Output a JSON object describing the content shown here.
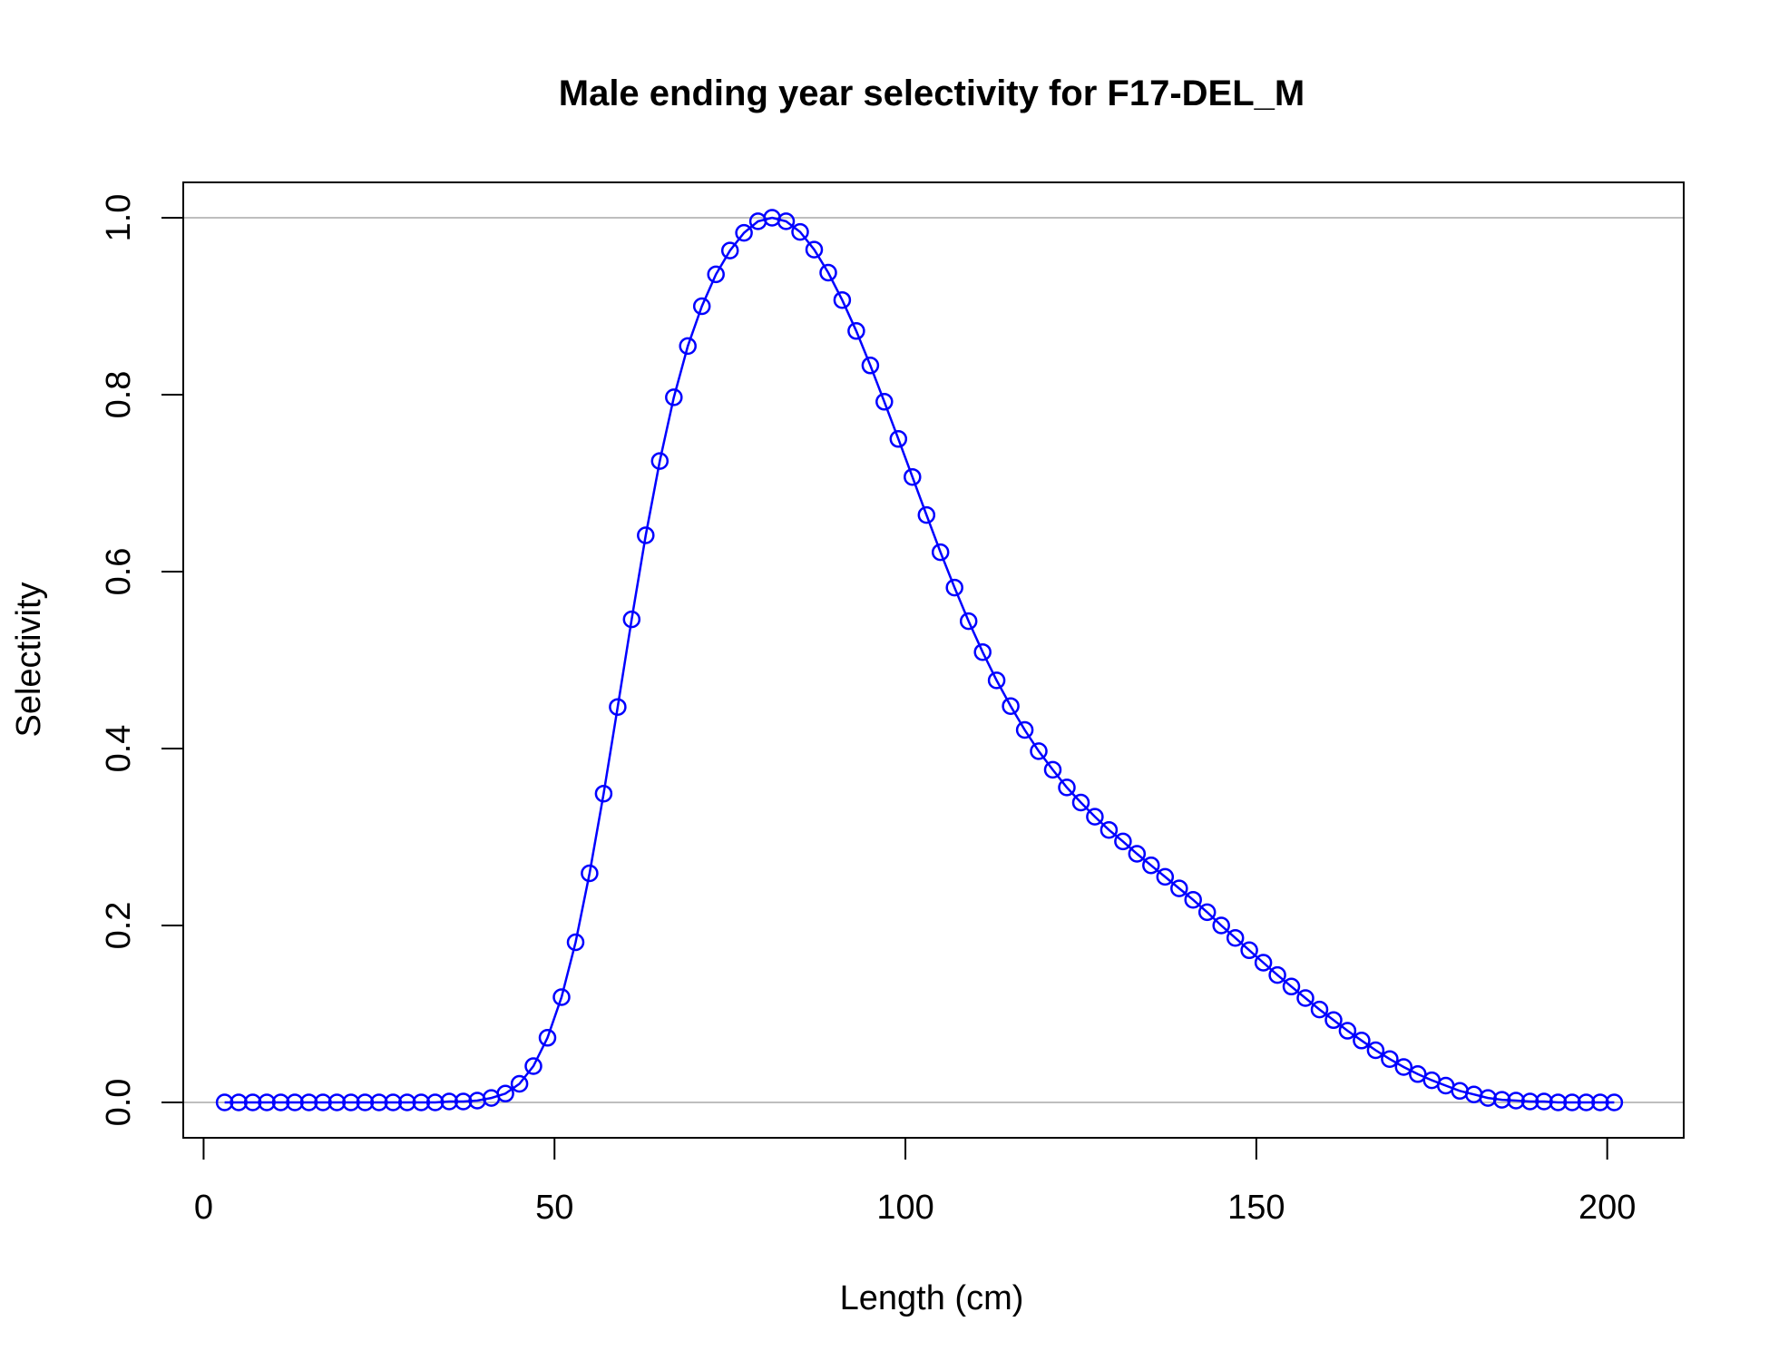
{
  "chart_data": {
    "type": "line",
    "title": "Male ending year selectivity for F17-DEL_M",
    "xlabel": "Length (cm)",
    "ylabel": "Selectivity",
    "xlim": [
      -2.9,
      210.9
    ],
    "ylim": [
      -0.04,
      1.04
    ],
    "xticks": [
      0,
      50,
      100,
      150,
      200
    ],
    "xtick_labels": [
      "0",
      "50",
      "100",
      "150",
      "200"
    ],
    "yticks": [
      0,
      0.2,
      0.4,
      0.6,
      0.8,
      1.0
    ],
    "ytick_labels": [
      "0.0",
      "0.2",
      "0.4",
      "0.6",
      "0.8",
      "1.0"
    ],
    "reference_lines": [
      0,
      1
    ],
    "grid": false,
    "series": [
      {
        "color": "#0000ff",
        "marker": "open-circle",
        "x": [
          3,
          5,
          7,
          9,
          11,
          13,
          15,
          17,
          19,
          21,
          23,
          25,
          27,
          29,
          31,
          33,
          35,
          37,
          39,
          41,
          43,
          45,
          47,
          49,
          51,
          53,
          55,
          57,
          59,
          61,
          63,
          65,
          67,
          69,
          71,
          73,
          75,
          77,
          79,
          81,
          83,
          85,
          87,
          89,
          91,
          93,
          95,
          97,
          99,
          101,
          103,
          105,
          107,
          109,
          111,
          113,
          115,
          117,
          119,
          121,
          123,
          125,
          127,
          129,
          131,
          133,
          135,
          137,
          139,
          141,
          143,
          145,
          147,
          149,
          151,
          153,
          155,
          157,
          159,
          161,
          163,
          165,
          167,
          169,
          171,
          173,
          175,
          177,
          179,
          181,
          183,
          185,
          187,
          189,
          191,
          193,
          195,
          197,
          199,
          201
        ],
        "values": [
          0,
          0,
          0,
          0,
          0,
          0,
          0,
          0,
          0,
          0,
          0,
          0,
          0,
          0,
          0,
          0,
          0.001,
          0.001,
          0.002,
          0.005,
          0.01,
          0.021,
          0.041,
          0.073,
          0.119,
          0.181,
          0.259,
          0.349,
          0.447,
          0.546,
          0.641,
          0.725,
          0.797,
          0.855,
          0.9,
          0.936,
          0.963,
          0.983,
          0.996,
          1.0,
          0.996,
          0.984,
          0.964,
          0.938,
          0.907,
          0.872,
          0.833,
          0.792,
          0.75,
          0.707,
          0.664,
          0.622,
          0.582,
          0.544,
          0.509,
          0.477,
          0.448,
          0.421,
          0.397,
          0.376,
          0.356,
          0.339,
          0.323,
          0.308,
          0.295,
          0.281,
          0.268,
          0.255,
          0.242,
          0.229,
          0.215,
          0.2,
          0.186,
          0.172,
          0.158,
          0.144,
          0.131,
          0.118,
          0.105,
          0.093,
          0.081,
          0.07,
          0.059,
          0.049,
          0.04,
          0.032,
          0.025,
          0.019,
          0.013,
          0.009,
          0.005,
          0.003,
          0.002,
          0.001,
          0.001,
          0,
          0,
          0,
          0,
          0
        ]
      }
    ]
  }
}
